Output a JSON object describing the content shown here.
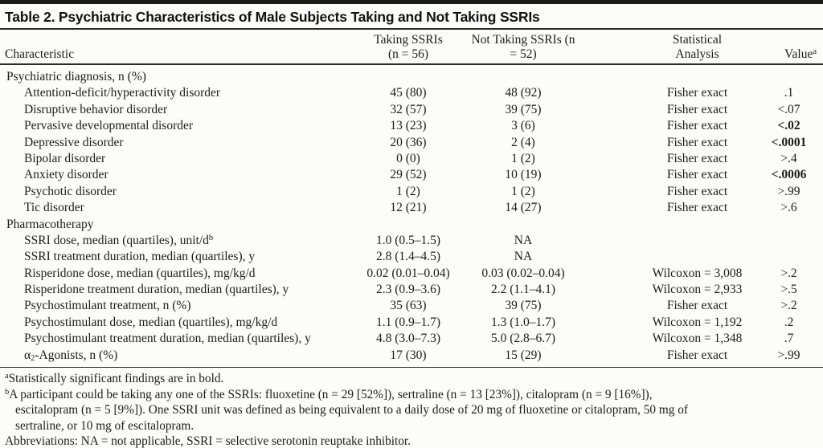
{
  "table": {
    "title": "Table 2. Psychiatric Characteristics of Male Subjects Taking and Not Taking SSRIs",
    "header": {
      "col1": "Characteristic",
      "col2a": "Taking SSRIs",
      "col2b": "(n = 56)",
      "col3": "Not Taking SSRIs (n = 52)",
      "col4a": "Statistical",
      "col4b": "Analysis",
      "col5": "Value^{a}"
    },
    "rows": [
      {
        "section": true,
        "label": "Psychiatric diagnosis, n (%)",
        "taking": "",
        "not_taking": "",
        "stat": "",
        "value": "",
        "bold": false
      },
      {
        "section": false,
        "label": "Attention-deficit/hyperactivity disorder",
        "taking": "45 (80)",
        "not_taking": "48 (92)",
        "stat": "Fisher exact",
        "value": ".1",
        "bold": false
      },
      {
        "section": false,
        "label": "Disruptive behavior disorder",
        "taking": "32 (57)",
        "not_taking": "39 (75)",
        "stat": "Fisher exact",
        "value": "<.07",
        "bold": false
      },
      {
        "section": false,
        "label": "Pervasive developmental disorder",
        "taking": "13 (23)",
        "not_taking": "3 (6)",
        "stat": "Fisher exact",
        "value": "<.02",
        "bold": true
      },
      {
        "section": false,
        "label": "Depressive disorder",
        "taking": "20 (36)",
        "not_taking": "2 (4)",
        "stat": "Fisher exact",
        "value": "<.0001",
        "bold": true
      },
      {
        "section": false,
        "label": "Bipolar disorder",
        "taking": "0 (0)",
        "not_taking": "1 (2)",
        "stat": "Fisher exact",
        "value": ">.4",
        "bold": false
      },
      {
        "section": false,
        "label": "Anxiety disorder",
        "taking": "29 (52)",
        "not_taking": "10 (19)",
        "stat": "Fisher exact",
        "value": "<.0006",
        "bold": true
      },
      {
        "section": false,
        "label": "Psychotic disorder",
        "taking": "1 (2)",
        "not_taking": "1 (2)",
        "stat": "Fisher exact",
        "value": ">.99",
        "bold": false
      },
      {
        "section": false,
        "label": "Tic disorder",
        "taking": "12 (21)",
        "not_taking": "14 (27)",
        "stat": "Fisher exact",
        "value": ">.6",
        "bold": false
      },
      {
        "section": true,
        "label": "Pharmacotherapy",
        "taking": "",
        "not_taking": "",
        "stat": "",
        "value": "",
        "bold": false
      },
      {
        "section": false,
        "label": "SSRI dose, median (quartiles), unit/d^{b}",
        "taking": "1.0 (0.5–1.5)",
        "not_taking": "NA",
        "stat": "",
        "value": "",
        "bold": false
      },
      {
        "section": false,
        "label": "SSRI treatment duration, median (quartiles), y",
        "taking": "2.8 (1.4–4.5)",
        "not_taking": "NA",
        "stat": "",
        "value": "",
        "bold": false
      },
      {
        "section": false,
        "label": "Risperidone dose, median (quartiles), mg/kg/d",
        "taking": "0.02 (0.01–0.04)",
        "not_taking": "0.03 (0.02–0.04)",
        "stat": "Wilcoxon = 3,008",
        "value": ">.2",
        "bold": false
      },
      {
        "section": false,
        "label": "Risperidone treatment duration, median (quartiles), y",
        "taking": "2.3 (0.9–3.6)",
        "not_taking": "2.2 (1.1–4.1)",
        "stat": "Wilcoxon = 2,933",
        "value": ">.5",
        "bold": false
      },
      {
        "section": false,
        "label": "Psychostimulant treatment, n (%)",
        "taking": "35 (63)",
        "not_taking": "39 (75)",
        "stat": "Fisher exact",
        "value": ">.2",
        "bold": false
      },
      {
        "section": false,
        "label": "Psychostimulant dose, median (quartiles), mg/kg/d",
        "taking": "1.1 (0.9–1.7)",
        "not_taking": "1.3 (1.0–1.7)",
        "stat": "Wilcoxon = 1,192",
        "value": ".2",
        "bold": false
      },
      {
        "section": false,
        "label": "Psychostimulant treatment duration, median (quartiles), y",
        "taking": "4.8 (3.0–7.3)",
        "not_taking": "5.0 (2.8–6.7)",
        "stat": "Wilcoxon = 1,348",
        "value": ".7",
        "bold": false
      },
      {
        "section": false,
        "label": "α_{2}-Agonists, n (%)",
        "taking": "17 (30)",
        "not_taking": "15 (29)",
        "stat": "Fisher exact",
        "value": ">.99",
        "bold": false
      }
    ]
  },
  "footnotes": {
    "a": "^{a}Statistically significant findings are in bold.",
    "b1": "^{b}A participant could be taking any one of the SSRIs: fluoxetine (n = 29 [52%]), sertraline (n = 13 [23%]), citalopram (n = 9 [16%]),",
    "b2": "escitalopram (n = 5 [9%]). One SSRI unit was defined as being equivalent to a daily dose of 20 mg of fluoxetine or citalopram, 50 mg of",
    "b3": "sertraline, or 10 mg of escitalopram.",
    "abbrev": "Abbreviations: NA = not applicable, SSRI = selective serotonin reuptake inhibitor."
  },
  "colors": {
    "rule": "#2a2a2a",
    "text": "#1c1c1c",
    "background": "#fcfcfa"
  }
}
